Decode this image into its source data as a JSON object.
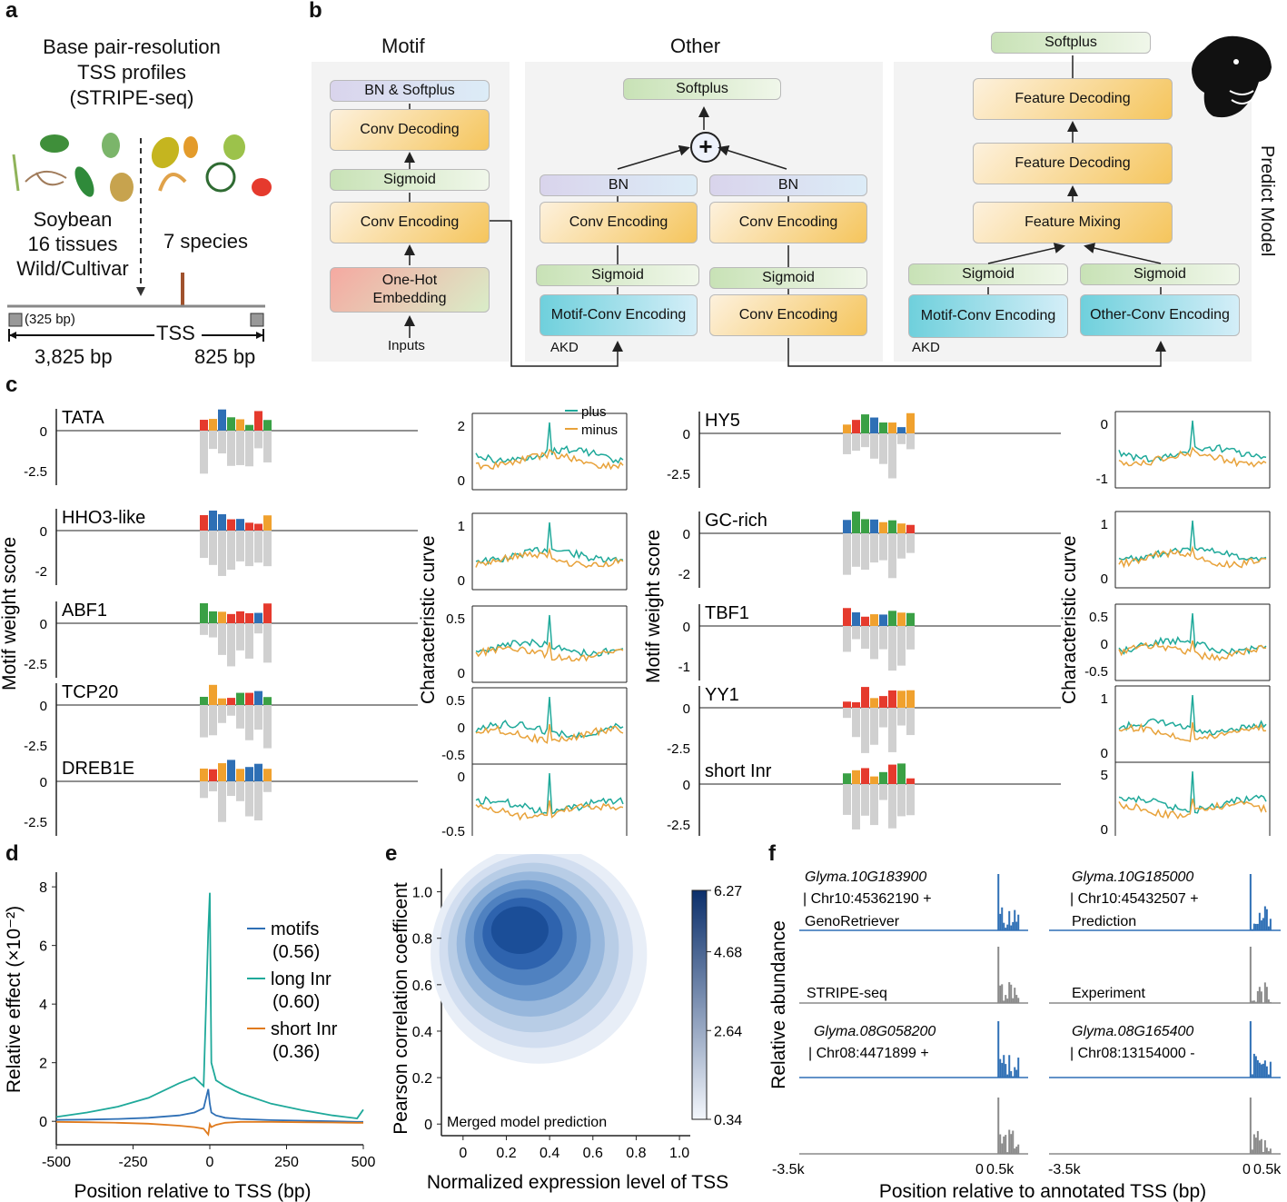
{
  "panel_letters": {
    "a": "a",
    "b": "b",
    "c": "c",
    "d": "d",
    "e": "e",
    "f": "f"
  },
  "panel_a": {
    "title_lines": [
      "Base pair-resolution",
      "TSS profiles",
      "(STRIPE-seq)"
    ],
    "left_lines": [
      "Soybean",
      "16 tissues",
      "Wild/Cultivar"
    ],
    "right_label": "7 species",
    "window_label": "(325 bp)",
    "tss_label": "TSS",
    "upstream_label": "3,825 bp",
    "downstream_label": "825 bp"
  },
  "panel_b": {
    "section_motif": "Motif",
    "section_other": "Other",
    "side_label": "Predict Model",
    "motif_stack": [
      "BN & Softplus",
      "Conv Decoding",
      "Sigmoid",
      "Conv Encoding",
      "One-Hot Embedding",
      "Inputs"
    ],
    "other": {
      "softplus": "Softplus",
      "bn_left": "BN",
      "bn_right": "BN",
      "conv_left": "Conv Encoding",
      "conv_right": "Conv Encoding",
      "sig_left": "Sigmoid",
      "sig_right": "Sigmoid",
      "motif_conv": "Motif-Conv Encoding",
      "conv_bottom": "Conv Encoding",
      "akd": "AKD"
    },
    "predict": {
      "softplus": "Softplus",
      "decoding1": "Feature Decoding",
      "decoding2": "Feature Decoding",
      "mixing": "Feature Mixing",
      "sig_left": "Sigmoid",
      "sig_right": "Sigmoid",
      "motif_conv": "Motif-Conv Encoding",
      "other_conv": "Other-Conv Encoding",
      "akd": "AKD"
    }
  },
  "panel_c": {
    "ylabel_left": "Motif weight score",
    "ylabel_mid": "Characteristic curve",
    "legend": [
      "plus",
      "minus"
    ],
    "colors": {
      "plus": "#1fa99a",
      "minus": "#e8a23a"
    },
    "left_motifs": [
      {
        "name": "TATA",
        "ticks": [
          "0",
          "-2.5"
        ],
        "curve_ticks": [
          "2",
          "0"
        ]
      },
      {
        "name": "HHO3-like",
        "ticks": [
          "0",
          "-2"
        ],
        "curve_ticks": [
          "1",
          "0"
        ]
      },
      {
        "name": "ABF1",
        "ticks": [
          "0",
          "-2.5"
        ],
        "curve_ticks": [
          "0.5",
          "0"
        ]
      },
      {
        "name": "TCP20",
        "ticks": [
          "0",
          "-2.5"
        ],
        "curve_ticks": [
          "0.5",
          "0",
          "-0.5"
        ]
      },
      {
        "name": "DREB1E",
        "ticks": [
          "0",
          "-2.5"
        ],
        "curve_ticks": [
          "0",
          "-0.5"
        ]
      }
    ],
    "right_motifs": [
      {
        "name": "HY5",
        "ticks": [
          "0",
          "-2.5"
        ],
        "curve_ticks": [
          "0",
          "-1"
        ]
      },
      {
        "name": "GC-rich",
        "ticks": [
          "0",
          "-2"
        ],
        "curve_ticks": [
          "1",
          "0"
        ]
      },
      {
        "name": "TBF1",
        "ticks": [
          "0",
          "-1"
        ],
        "curve_ticks": [
          "0.5",
          "0",
          "-0.5"
        ]
      },
      {
        "name": "YY1",
        "ticks": [
          "0",
          "-2.5"
        ],
        "curve_ticks": [
          "1",
          "0"
        ]
      },
      {
        "name": "short Inr",
        "ticks": [
          "0",
          "-2.5"
        ],
        "curve_ticks": [
          "5",
          "0"
        ]
      }
    ]
  },
  "chart_data": [
    {
      "type": "line",
      "xlabel": "Position relative to TSS (bp)",
      "ylabel": "Relative effect (×10⁻²)",
      "x_ticks": [
        "-500",
        "-250",
        "0",
        "250",
        "500"
      ],
      "y_ticks": [
        "0",
        "2",
        "4",
        "6",
        "8"
      ],
      "xlim": [
        -500,
        500
      ],
      "ylim": [
        -0.8,
        8.5
      ],
      "x": [
        -500,
        -400,
        -300,
        -200,
        -100,
        -50,
        -20,
        -5,
        0,
        5,
        20,
        50,
        100,
        200,
        300,
        400,
        480,
        500
      ],
      "series": [
        {
          "name": "motifs",
          "label2": "(0.56)",
          "color": "#2e6fb5",
          "values": [
            0.05,
            0.06,
            0.08,
            0.12,
            0.2,
            0.3,
            0.45,
            1.1,
            0.6,
            0.3,
            0.2,
            0.12,
            0.08,
            0.04,
            0.02,
            0.0,
            -0.02,
            -0.02
          ]
        },
        {
          "name": "long Inr",
          "label2": "(0.60)",
          "color": "#1fa99a",
          "values": [
            0.15,
            0.3,
            0.5,
            0.8,
            1.3,
            1.5,
            1.2,
            6.5,
            7.8,
            2.0,
            1.4,
            1.2,
            0.95,
            0.6,
            0.38,
            0.2,
            0.1,
            0.4
          ]
        },
        {
          "name": "short Inr",
          "label2": "(0.36)",
          "color": "#e07b1e",
          "values": [
            -0.02,
            -0.03,
            -0.05,
            -0.08,
            -0.15,
            -0.2,
            -0.25,
            -0.45,
            -0.1,
            -0.2,
            -0.12,
            -0.05,
            -0.02,
            -0.02,
            -0.03,
            -0.04,
            -0.05,
            -0.05
          ]
        }
      ]
    },
    {
      "type": "heatmap",
      "title": "Merged model prediction",
      "xlabel": "Normalized expression level of TSS",
      "ylabel": "Pearson correlation coefficent",
      "x_ticks": [
        "0",
        "0.2",
        "0.4",
        "0.6",
        "0.8",
        "1.0"
      ],
      "y_ticks": [
        "0",
        "0.2",
        "0.4",
        "0.6",
        "0.8",
        "1.0"
      ],
      "xlim": [
        -0.1,
        1.05
      ],
      "ylim": [
        -0.05,
        1.1
      ],
      "colorbar_ticks": [
        "6.27",
        "4.68",
        "2.64",
        "0.34"
      ],
      "colorbar_range": [
        0.34,
        6.27
      ],
      "peak": {
        "x": 0.25,
        "y": 0.85
      }
    },
    {
      "type": "line",
      "xlabel": "Position relative to annotated TSS (bp)",
      "ylabel": "Relative abundance",
      "x_ticks": [
        "-3.5k",
        "0",
        "0.5k"
      ],
      "tracks": [
        {
          "gene": "Glyma.10G183900",
          "locus": "| Chr10:45362190 +",
          "label": "GenoRetriever",
          "color": "#2e6fb5"
        },
        {
          "gene": "",
          "locus": "",
          "label": "STRIPE-seq",
          "color": "#8a8a8a"
        },
        {
          "gene": "Glyma.10G185000",
          "locus": "| Chr10:45432507 +",
          "label": "Prediction",
          "color": "#2e6fb5"
        },
        {
          "gene": "",
          "locus": "",
          "label": "Experiment",
          "color": "#8a8a8a"
        },
        {
          "gene": "Glyma.08G058200",
          "locus": "| Chr08:4471899 +",
          "label": "",
          "color": "#2e6fb5"
        },
        {
          "gene": "Glyma.08G165400",
          "locus": "| Chr08:13154000 -",
          "label": "",
          "color": "#2e6fb5"
        }
      ]
    }
  ]
}
